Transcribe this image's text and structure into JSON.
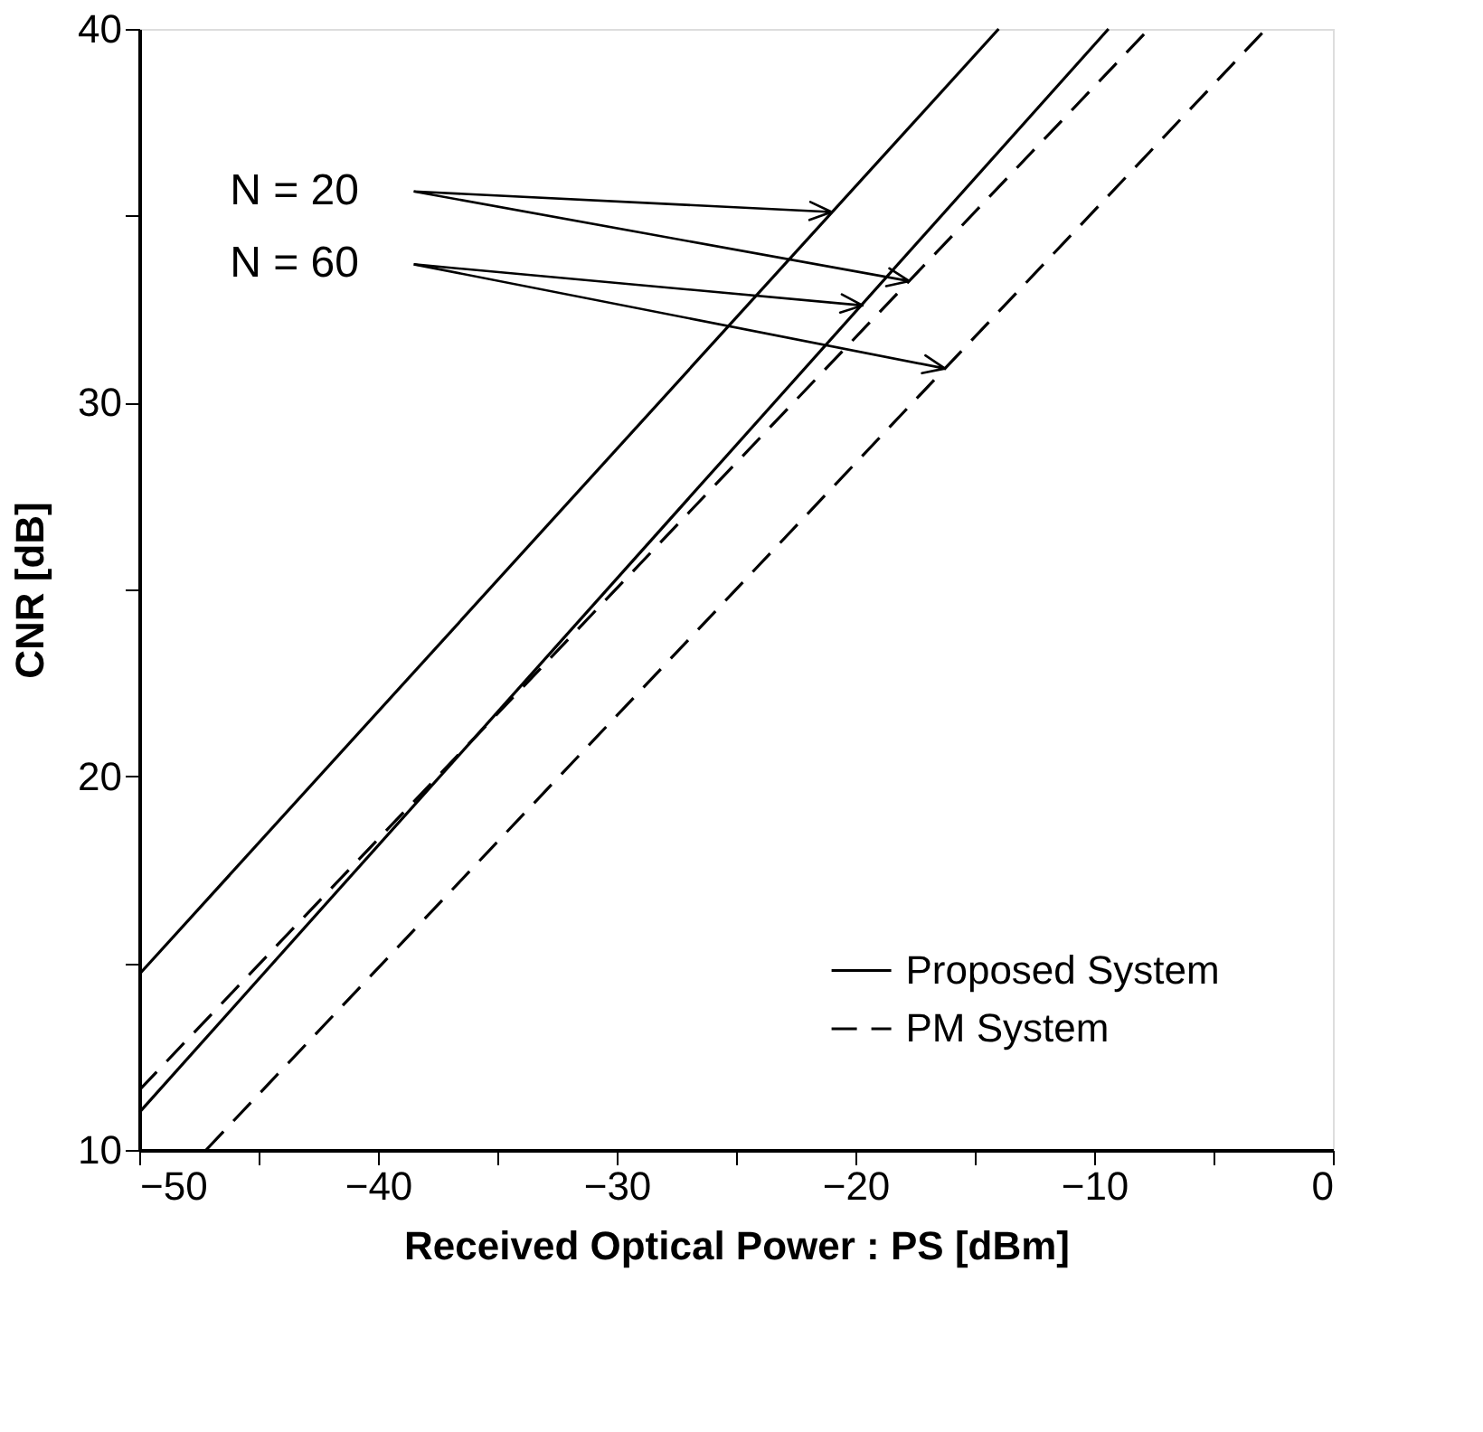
{
  "chart_data": {
    "type": "line",
    "xlabel": "Received Optical Power : PS [dBm]",
    "ylabel": "CNR [dB]",
    "xlim": [
      -50,
      0
    ],
    "ylim": [
      10,
      40
    ],
    "xticks": [
      -50,
      {
        "value": -45,
        "label": null
      },
      -40,
      {
        "value": -35,
        "label": null
      },
      -30,
      {
        "value": -25,
        "label": null
      },
      -20,
      {
        "value": -15,
        "label": null
      },
      -10,
      {
        "value": -5,
        "label": null
      },
      0
    ],
    "yticks": [
      10,
      {
        "value": 15,
        "label": null
      },
      20,
      {
        "value": 25,
        "label": null
      },
      30,
      {
        "value": 35,
        "label": null
      },
      40
    ],
    "grid": false,
    "legend": "bottom right",
    "marker": "none",
    "series": [
      {
        "name": "Proposed System",
        "color": "#000000",
        "line_style": "solid",
        "x": [
          -50,
          -14
        ],
        "values": [
          14.7,
          40
        ]
      },
      {
        "color": "#000000",
        "line_style": "solid",
        "x": [
          -50,
          -9.4
        ],
        "values": [
          11.0,
          40
        ]
      },
      {
        "name": "PM System",
        "color": "#000000",
        "line_style": "dashed",
        "x": [
          -50,
          -7.7
        ],
        "values": [
          11.6,
          40
        ]
      },
      {
        "color": "#000000",
        "line_style": "dashed",
        "x": [
          -47.2,
          -2.8
        ],
        "values": [
          10,
          40
        ]
      }
    ],
    "annotations": [
      {
        "text": "N = 20",
        "x": -21,
        "y": 35.1
      },
      {
        "text": "N = 60",
        "x": -19.7,
        "y": 32.6
      }
    ]
  }
}
